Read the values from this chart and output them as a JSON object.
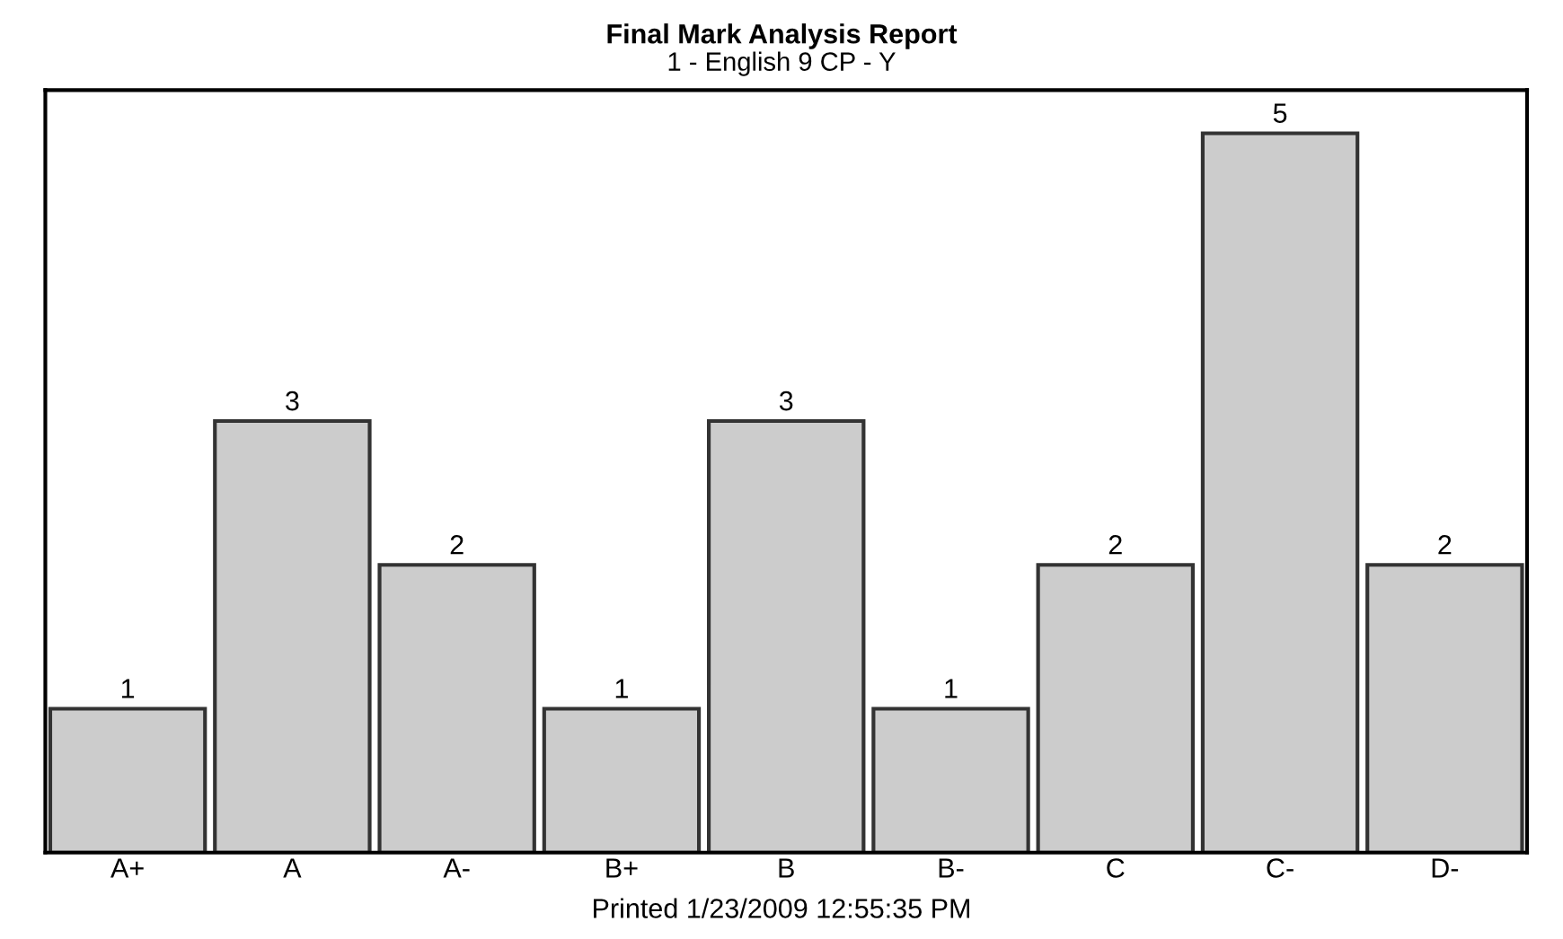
{
  "chart_data": {
    "type": "bar",
    "title": "Final Mark Analysis Report",
    "subtitle": "1 - English 9 CP - Y",
    "categories": [
      "A+",
      "A",
      "A-",
      "B+",
      "B",
      "B-",
      "C",
      "C-",
      "D-"
    ],
    "values": [
      1,
      3,
      2,
      1,
      3,
      1,
      2,
      5,
      2
    ],
    "color": "#cccccc",
    "ylim": [
      0,
      5.3
    ],
    "data_labels": true,
    "grid": false,
    "legend": false,
    "tick_labels": "x",
    "annotations": [
      "Printed 1/23/2009 12:55:35 PM"
    ]
  }
}
